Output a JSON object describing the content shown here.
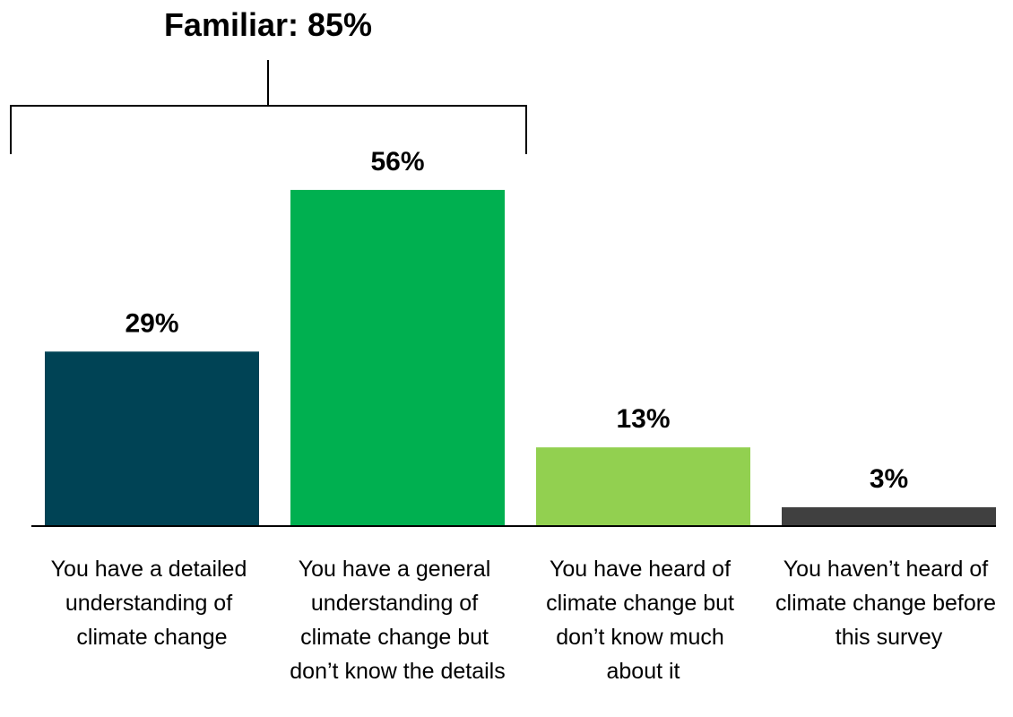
{
  "chart_data": {
    "type": "bar",
    "annotation": "Familiar: 85%",
    "categories": [
      "You have a detailed understanding of climate change",
      "You have a general understanding of climate change but don’t know the details",
      "You have heard of climate change but don’t know much about it",
      "You haven’t heard of climate change before this survey"
    ],
    "values": [
      29,
      56,
      13,
      3
    ],
    "value_labels": [
      "29%",
      "56%",
      "13%",
      "3%"
    ],
    "colors": [
      "#004355",
      "#00b050",
      "#92d050",
      "#404040"
    ]
  }
}
